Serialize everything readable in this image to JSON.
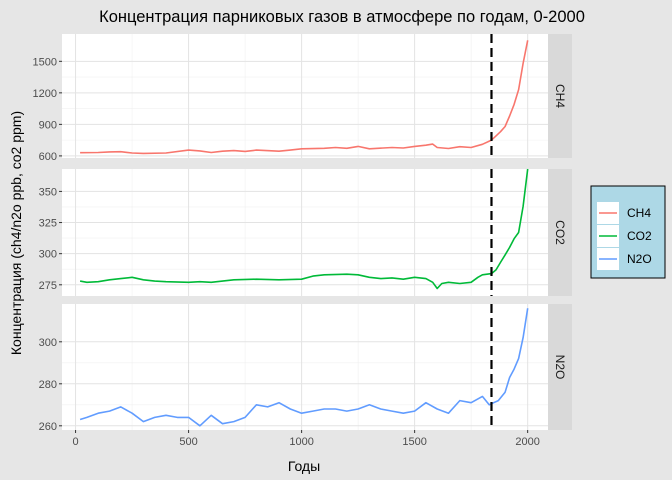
{
  "chart_data": {
    "type": "line",
    "title": "Концентрация парниковых газов в атмосфере по годам, 0-2000",
    "xlabel": "Годы",
    "ylabel": "Концентрация (ch4/n2o ppb, co2 ppm)",
    "xlim": [
      -60,
      2090
    ],
    "xticks": [
      0,
      500,
      1000,
      1500,
      2000
    ],
    "vline_x": 1840,
    "legend_position": "right",
    "colors": {
      "CH4": "#F8766D",
      "CO2": "#00BA38",
      "N2O": "#619CFF"
    },
    "panels": [
      {
        "name": "CH4",
        "strip": "CH4",
        "ylim": [
          580,
          1760
        ],
        "yticks": [
          600,
          900,
          1200,
          1500
        ],
        "x": [
          20,
          100,
          150,
          200,
          250,
          300,
          400,
          500,
          550,
          600,
          650,
          700,
          750,
          800,
          900,
          950,
          1000,
          1100,
          1150,
          1200,
          1250,
          1300,
          1400,
          1450,
          1500,
          1550,
          1580,
          1600,
          1650,
          1700,
          1750,
          1800,
          1840,
          1860,
          1880,
          1900,
          1920,
          1940,
          1960,
          1980,
          2000
        ],
        "values": [
          630,
          632,
          638,
          640,
          628,
          624,
          628,
          655,
          648,
          632,
          645,
          650,
          643,
          655,
          645,
          655,
          668,
          672,
          680,
          672,
          690,
          668,
          680,
          675,
          690,
          702,
          712,
          680,
          670,
          688,
          680,
          710,
          750,
          790,
          830,
          880,
          980,
          1090,
          1230,
          1480,
          1700
        ]
      },
      {
        "name": "CO2",
        "strip": "CO2",
        "ylim": [
          266,
          368
        ],
        "yticks": [
          275,
          300,
          325,
          350
        ],
        "x": [
          20,
          50,
          100,
          150,
          200,
          250,
          300,
          350,
          400,
          500,
          550,
          600,
          700,
          800,
          900,
          1000,
          1050,
          1100,
          1200,
          1250,
          1300,
          1350,
          1400,
          1450,
          1500,
          1550,
          1580,
          1600,
          1620,
          1650,
          1700,
          1750,
          1780,
          1800,
          1840,
          1860,
          1880,
          1900,
          1920,
          1940,
          1960,
          1980,
          2000
        ],
        "values": [
          278,
          277,
          277.5,
          279,
          280,
          281,
          279,
          278,
          277.5,
          277,
          277.5,
          277,
          279,
          279.5,
          279,
          279.5,
          282,
          283,
          283.5,
          283,
          281,
          280,
          280.5,
          279.5,
          281,
          280,
          277,
          272,
          276,
          277,
          276,
          277,
          281,
          283,
          284,
          287,
          293,
          299,
          305,
          312,
          317,
          338,
          368
        ]
      },
      {
        "name": "N2O",
        "strip": "N2O",
        "ylim": [
          258,
          318
        ],
        "yticks": [
          260,
          280,
          300
        ],
        "x": [
          20,
          50,
          100,
          150,
          200,
          250,
          300,
          350,
          400,
          450,
          500,
          550,
          600,
          650,
          700,
          750,
          800,
          850,
          900,
          950,
          1000,
          1050,
          1100,
          1150,
          1200,
          1250,
          1300,
          1350,
          1400,
          1450,
          1500,
          1550,
          1600,
          1650,
          1700,
          1750,
          1800,
          1830,
          1850,
          1870,
          1900,
          1920,
          1940,
          1960,
          1980,
          2000
        ],
        "values": [
          263,
          264,
          266,
          267,
          269,
          266,
          262,
          264,
          265,
          264,
          264,
          260,
          265,
          261,
          262,
          264,
          270,
          269,
          271,
          268,
          266,
          267,
          268,
          268,
          267,
          268,
          270,
          268,
          267,
          266,
          267,
          271,
          268,
          266,
          272,
          271,
          274,
          270,
          271,
          272,
          276,
          283,
          287,
          292,
          302,
          316
        ]
      }
    ]
  }
}
